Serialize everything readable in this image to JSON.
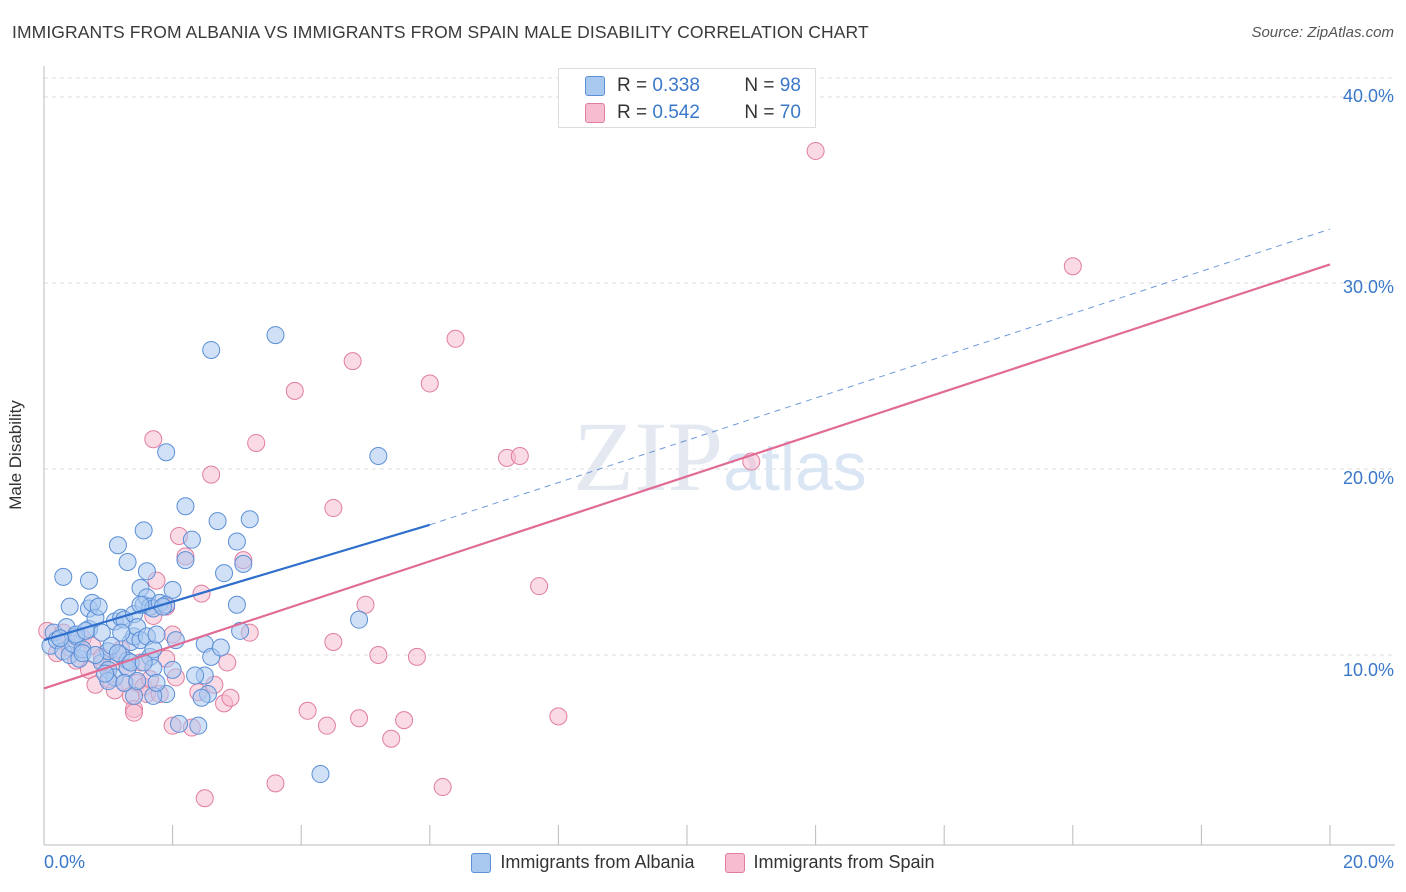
{
  "title": "IMMIGRANTS FROM ALBANIA VS IMMIGRANTS FROM SPAIN MALE DISABILITY CORRELATION CHART",
  "source": "Source: ZipAtlas.com",
  "watermark": "ZIPatlas",
  "colors": {
    "albania_fill": "#a9c8f0",
    "albania_stroke": "#5b8fd6",
    "albania_line": "#2f6fcc",
    "spain_fill": "#f6bcd0",
    "spain_stroke": "#e07ea0",
    "spain_line": "#e06b94",
    "tick_text": "#3a78c9",
    "grid": "#dddddd"
  },
  "legend_top": {
    "rows": [
      {
        "r_label": "R =",
        "r_value": "0.338",
        "n_label": "N =",
        "n_value": "98"
      },
      {
        "r_label": "R =",
        "r_value": "0.542",
        "n_label": "N =",
        "n_value": "70"
      }
    ]
  },
  "chart_data": {
    "type": "scatter",
    "title": "IMMIGRANTS FROM ALBANIA VS IMMIGRANTS FROM SPAIN MALE DISABILITY CORRELATION CHART",
    "xlabel": "",
    "ylabel": "Male Disability",
    "xlim": [
      0,
      20
    ],
    "ylim": [
      0,
      40
    ],
    "x_tick_labels": [
      "0.0%",
      "20.0%"
    ],
    "y_tick_labels": [
      "10.0%",
      "20.0%",
      "30.0%",
      "40.0%"
    ],
    "y_tick_values": [
      10,
      20,
      30,
      40
    ],
    "grid": true,
    "legend_placement": "bottom",
    "series": [
      {
        "name": "Immigrants from Albania",
        "R": 0.338,
        "N": 98,
        "trend": {
          "x0": 0,
          "y0": 10.8,
          "x1": 6,
          "y1": 17.0,
          "dashed_to_x": 20,
          "dashed_to_y": 32.9
        },
        "points": [
          [
            0.1,
            10.5
          ],
          [
            0.15,
            11.2
          ],
          [
            0.2,
            10.8
          ],
          [
            0.3,
            10.2
          ],
          [
            0.35,
            11.5
          ],
          [
            0.4,
            10.0
          ],
          [
            0.45,
            10.6
          ],
          [
            0.5,
            11.0
          ],
          [
            0.55,
            9.8
          ],
          [
            0.6,
            10.3
          ],
          [
            0.3,
            14.2
          ],
          [
            0.7,
            12.5
          ],
          [
            0.75,
            12.8
          ],
          [
            0.7,
            11.4
          ],
          [
            0.8,
            12.0
          ],
          [
            0.85,
            12.6
          ],
          [
            0.9,
            11.2
          ],
          [
            0.9,
            9.6
          ],
          [
            1.0,
            10.2
          ],
          [
            1.0,
            9.2
          ],
          [
            0.7,
            14.0
          ],
          [
            1.1,
            8.8
          ],
          [
            1.1,
            11.8
          ],
          [
            1.2,
            12.0
          ],
          [
            1.2,
            10.0
          ],
          [
            1.25,
            11.9
          ],
          [
            1.3,
            9.7
          ],
          [
            1.3,
            9.3
          ],
          [
            1.35,
            10.7
          ],
          [
            1.4,
            12.2
          ],
          [
            1.4,
            11.0
          ],
          [
            1.45,
            11.5
          ],
          [
            1.5,
            10.8
          ],
          [
            1.5,
            13.6
          ],
          [
            1.55,
            12.7
          ],
          [
            1.6,
            13.1
          ],
          [
            1.6,
            11.0
          ],
          [
            1.65,
            9.9
          ],
          [
            1.7,
            10.3
          ],
          [
            1.7,
            9.3
          ],
          [
            1.15,
            15.9
          ],
          [
            1.3,
            15.0
          ],
          [
            1.6,
            14.5
          ],
          [
            1.65,
            12.6
          ],
          [
            1.7,
            12.5
          ],
          [
            1.75,
            11.1
          ],
          [
            1.8,
            12.8
          ],
          [
            1.9,
            12.7
          ],
          [
            2.0,
            13.5
          ],
          [
            2.05,
            10.8
          ],
          [
            1.2,
            11.2
          ],
          [
            1.5,
            12.7
          ],
          [
            1.55,
            16.7
          ],
          [
            1.9,
            7.9
          ],
          [
            2.0,
            9.2
          ],
          [
            2.1,
            6.3
          ],
          [
            2.2,
            15.1
          ],
          [
            2.2,
            18.0
          ],
          [
            2.3,
            16.2
          ],
          [
            2.4,
            6.2
          ],
          [
            2.5,
            10.6
          ],
          [
            2.5,
            8.9
          ],
          [
            2.55,
            7.9
          ],
          [
            2.6,
            9.9
          ],
          [
            2.7,
            17.2
          ],
          [
            2.8,
            14.4
          ],
          [
            3.0,
            12.7
          ],
          [
            3.05,
            11.3
          ],
          [
            3.1,
            14.9
          ],
          [
            3.2,
            17.3
          ],
          [
            3.0,
            16.1
          ],
          [
            2.6,
            26.4
          ],
          [
            3.6,
            27.2
          ],
          [
            1.9,
            20.9
          ],
          [
            5.2,
            20.7
          ],
          [
            4.9,
            11.9
          ],
          [
            4.3,
            3.6
          ],
          [
            1.4,
            7.8
          ],
          [
            1.7,
            7.8
          ],
          [
            1.0,
            8.6
          ],
          [
            0.5,
            11.1
          ],
          [
            0.6,
            10.1
          ],
          [
            0.65,
            11.3
          ],
          [
            0.8,
            10.0
          ],
          [
            0.95,
            9.0
          ],
          [
            1.05,
            10.5
          ],
          [
            1.15,
            10.1
          ],
          [
            1.25,
            8.5
          ],
          [
            1.35,
            9.6
          ],
          [
            1.45,
            8.6
          ],
          [
            1.55,
            9.6
          ],
          [
            1.75,
            8.5
          ],
          [
            1.85,
            12.6
          ],
          [
            2.35,
            8.9
          ],
          [
            2.45,
            7.7
          ],
          [
            2.75,
            10.4
          ],
          [
            0.25,
            10.9
          ],
          [
            0.4,
            12.6
          ]
        ]
      },
      {
        "name": "Immigrants from Spain",
        "R": 0.542,
        "N": 70,
        "trend": {
          "x0": 0,
          "y0": 8.2,
          "x1": 20,
          "y1": 31.0
        },
        "points": [
          [
            0.05,
            11.3
          ],
          [
            0.2,
            10.1
          ],
          [
            0.3,
            11.2
          ],
          [
            0.4,
            10.4
          ],
          [
            0.5,
            9.7
          ],
          [
            0.6,
            10.9
          ],
          [
            0.7,
            9.2
          ],
          [
            0.75,
            10.5
          ],
          [
            0.8,
            8.4
          ],
          [
            0.9,
            9.9
          ],
          [
            1.0,
            8.7
          ],
          [
            1.05,
            9.5
          ],
          [
            1.1,
            8.1
          ],
          [
            1.2,
            10.3
          ],
          [
            1.25,
            8.5
          ],
          [
            1.3,
            9.3
          ],
          [
            1.35,
            7.8
          ],
          [
            1.4,
            7.1
          ],
          [
            1.45,
            8.5
          ],
          [
            1.5,
            9.6
          ],
          [
            1.55,
            8.3
          ],
          [
            1.6,
            7.9
          ],
          [
            1.65,
            8.7
          ],
          [
            1.7,
            12.1
          ],
          [
            1.75,
            14.0
          ],
          [
            1.8,
            7.9
          ],
          [
            1.9,
            12.6
          ],
          [
            2.0,
            11.1
          ],
          [
            2.05,
            8.8
          ],
          [
            2.1,
            16.4
          ],
          [
            2.2,
            15.3
          ],
          [
            2.3,
            6.1
          ],
          [
            2.4,
            8.0
          ],
          [
            2.45,
            13.3
          ],
          [
            2.6,
            19.7
          ],
          [
            2.65,
            8.4
          ],
          [
            2.8,
            7.4
          ],
          [
            2.85,
            9.6
          ],
          [
            2.9,
            7.7
          ],
          [
            3.1,
            15.1
          ],
          [
            3.2,
            11.2
          ],
          [
            3.3,
            21.4
          ],
          [
            1.7,
            21.6
          ],
          [
            3.9,
            24.2
          ],
          [
            4.8,
            25.8
          ],
          [
            5.4,
            5.5
          ],
          [
            6.0,
            24.6
          ],
          [
            6.4,
            27.0
          ],
          [
            7.2,
            20.6
          ],
          [
            4.5,
            17.9
          ],
          [
            5.0,
            12.7
          ],
          [
            4.1,
            7.0
          ],
          [
            4.4,
            6.2
          ],
          [
            5.6,
            6.5
          ],
          [
            5.8,
            9.9
          ],
          [
            6.2,
            2.9
          ],
          [
            7.7,
            13.7
          ],
          [
            8.0,
            6.7
          ],
          [
            7.4,
            20.7
          ],
          [
            11.0,
            20.4
          ],
          [
            12.0,
            37.1
          ],
          [
            16.0,
            30.9
          ],
          [
            3.6,
            3.1
          ],
          [
            2.5,
            2.3
          ],
          [
            4.5,
            10.7
          ],
          [
            5.2,
            10.0
          ],
          [
            4.9,
            6.6
          ],
          [
            2.0,
            6.2
          ],
          [
            1.4,
            6.9
          ],
          [
            1.9,
            9.8
          ]
        ]
      }
    ]
  },
  "legend_bottom": [
    {
      "label": "Immigrants from Albania"
    },
    {
      "label": "Immigrants from Spain"
    }
  ]
}
